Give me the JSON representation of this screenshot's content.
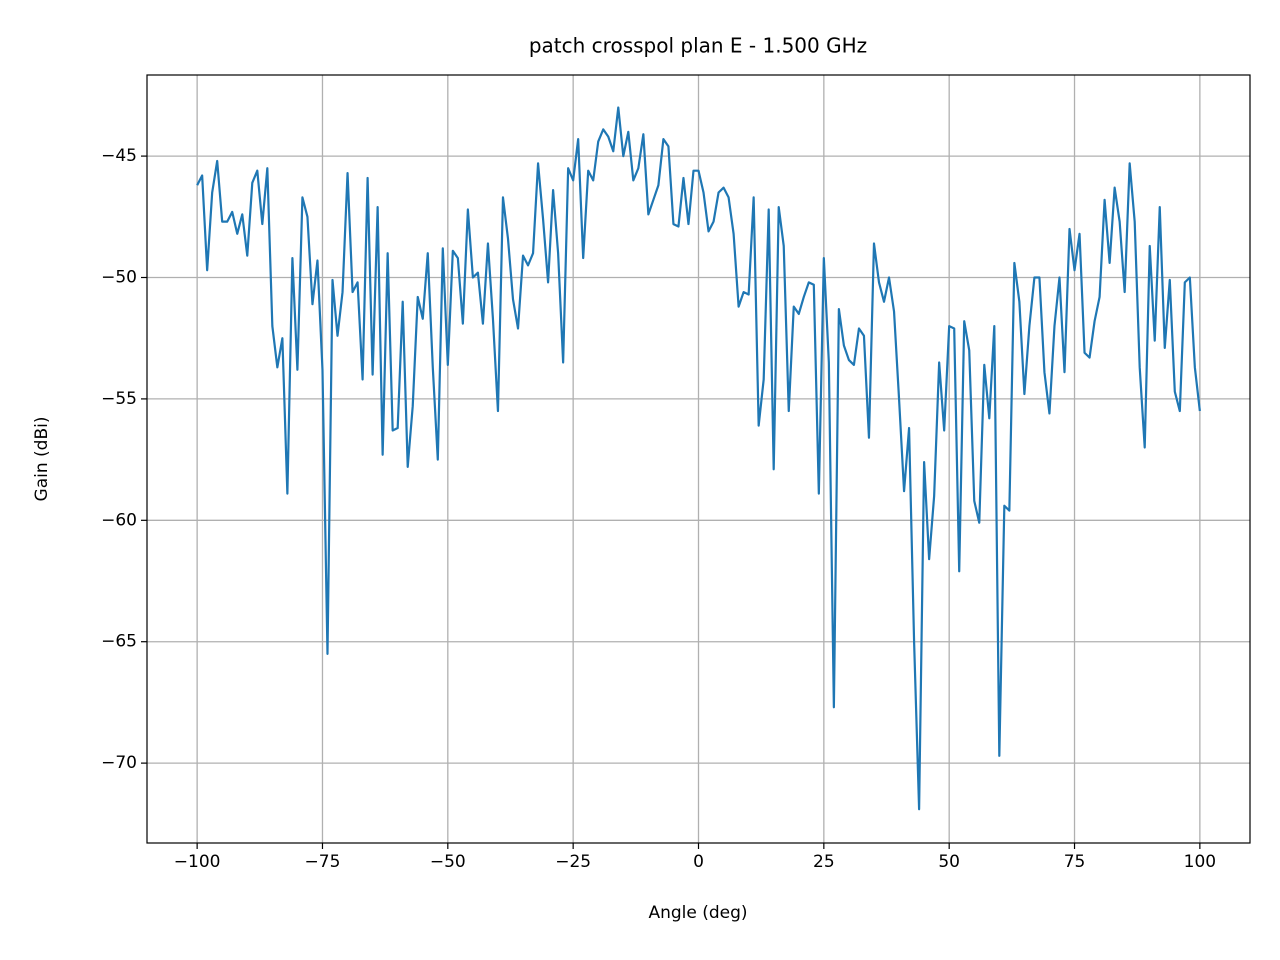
{
  "chart_data": {
    "type": "line",
    "title": "patch crosspol plan E - 1.500 GHz",
    "xlabel": "Angle (deg)",
    "ylabel": "Gain (dBi)",
    "xlim": [
      -110,
      110
    ],
    "ylim": [
      -73.29,
      -41.66
    ],
    "xticks": [
      {
        "value": -100,
        "label": "−100"
      },
      {
        "value": -75,
        "label": "−75"
      },
      {
        "value": -50,
        "label": "−50"
      },
      {
        "value": -25,
        "label": "−25"
      },
      0,
      25,
      50,
      75,
      100
    ],
    "yticks": [
      {
        "value": -70,
        "label": "−70"
      },
      {
        "value": -65,
        "label": "−65"
      },
      {
        "value": -60,
        "label": "−60"
      },
      {
        "value": -55,
        "label": "−55"
      },
      {
        "value": -50,
        "label": "−50"
      },
      {
        "value": -45,
        "label": "−45"
      }
    ],
    "grid": true,
    "x": [
      -100,
      -99,
      -98,
      -97,
      -96,
      -95,
      -94,
      -93,
      -92,
      -91,
      -90,
      -89,
      -88,
      -87,
      -86,
      -85,
      -84,
      -83,
      -82,
      -81,
      -80,
      -79,
      -78,
      -77,
      -76,
      -75,
      -74,
      -73,
      -72,
      -71,
      -70,
      -69,
      -68,
      -67,
      -66,
      -65,
      -64,
      -63,
      -62,
      -61,
      -60,
      -59,
      -58,
      -57,
      -56,
      -55,
      -54,
      -53,
      -52,
      -51,
      -50,
      -49,
      -48,
      -47,
      -46,
      -45,
      -44,
      -43,
      -42,
      -41,
      -40,
      -39,
      -38,
      -37,
      -36,
      -35,
      -34,
      -33,
      -32,
      -31,
      -30,
      -29,
      -28,
      -27,
      -26,
      -25,
      -24,
      -23,
      -22,
      -21,
      -20,
      -19,
      -18,
      -17,
      -16,
      -15,
      -14,
      -13,
      -12,
      -11,
      -10,
      -9,
      -8,
      -7,
      -6,
      -5,
      -4,
      -3,
      -2,
      -1,
      0,
      1,
      2,
      3,
      4,
      5,
      6,
      7,
      8,
      9,
      10,
      11,
      12,
      13,
      14,
      15,
      16,
      17,
      18,
      19,
      20,
      21,
      22,
      23,
      24,
      25,
      26,
      27,
      28,
      29,
      30,
      31,
      32,
      33,
      34,
      35,
      36,
      37,
      38,
      39,
      40,
      41,
      42,
      43,
      44,
      45,
      46,
      47,
      48,
      49,
      50,
      51,
      52,
      53,
      54,
      55,
      56,
      57,
      58,
      59,
      60,
      61,
      62,
      63,
      64,
      65,
      66,
      67,
      68,
      69,
      70,
      71,
      72,
      73,
      74,
      75,
      76,
      77,
      78,
      79,
      80,
      81,
      82,
      83,
      84,
      85,
      86,
      87,
      88,
      89,
      90,
      91,
      92,
      93,
      94,
      95,
      96,
      97,
      98,
      99,
      100
    ],
    "series": [
      {
        "name": "crosspol",
        "color": "#1f77b4",
        "values": [
          -46.2,
          -45.8,
          -49.7,
          -46.5,
          -45.2,
          -47.7,
          -47.7,
          -47.3,
          -48.2,
          -47.4,
          -49.1,
          -46.1,
          -45.6,
          -47.8,
          -45.5,
          -52.0,
          -53.7,
          -52.5,
          -58.9,
          -49.2,
          -53.8,
          -46.7,
          -47.5,
          -51.1,
          -49.3,
          -53.8,
          -65.5,
          -50.1,
          -52.4,
          -50.6,
          -45.7,
          -50.6,
          -50.2,
          -54.2,
          -45.9,
          -54.0,
          -47.1,
          -57.3,
          -49.0,
          -56.3,
          -56.2,
          -51.0,
          -57.8,
          -55.3,
          -50.8,
          -51.7,
          -49.0,
          -53.7,
          -57.5,
          -48.8,
          -53.6,
          -48.9,
          -49.2,
          -51.9,
          -47.2,
          -50.0,
          -49.8,
          -51.9,
          -48.6,
          -51.7,
          -55.5,
          -46.7,
          -48.4,
          -50.9,
          -52.1,
          -49.1,
          -49.5,
          -49.0,
          -45.3,
          -47.6,
          -50.2,
          -46.4,
          -49.0,
          -53.5,
          -45.5,
          -46.0,
          -44.3,
          -49.2,
          -45.6,
          -46.0,
          -44.4,
          -43.9,
          -44.2,
          -44.8,
          -43.0,
          -45.0,
          -44.0,
          -46.0,
          -45.5,
          -44.1,
          -47.4,
          -46.8,
          -46.2,
          -44.3,
          -44.6,
          -47.8,
          -47.9,
          -45.9,
          -47.8,
          -45.6,
          -45.6,
          -46.5,
          -48.1,
          -47.7,
          -46.5,
          -46.3,
          -46.7,
          -48.2,
          -51.2,
          -50.6,
          -50.7,
          -46.7,
          -56.1,
          -54.2,
          -47.2,
          -57.9,
          -47.1,
          -48.7,
          -55.5,
          -51.2,
          -51.5,
          -50.8,
          -50.2,
          -50.3,
          -58.9,
          -49.2,
          -53.5,
          -67.7,
          -51.3,
          -52.8,
          -53.4,
          -53.6,
          -52.1,
          -52.4,
          -56.6,
          -48.6,
          -50.2,
          -51.0,
          -50.0,
          -51.4,
          -55.0,
          -58.8,
          -56.2,
          -65.0,
          -71.9,
          -57.6,
          -61.6,
          -59.0,
          -53.5,
          -56.3,
          -52.0,
          -52.1,
          -62.1,
          -51.8,
          -53.0,
          -59.2,
          -60.1,
          -53.6,
          -55.8,
          -52.0,
          -69.7,
          -59.4,
          -59.6,
          -49.4,
          -51.0,
          -54.8,
          -52.0,
          -50.0,
          -50.0,
          -53.9,
          -55.6,
          -52.0,
          -50.0,
          -53.9,
          -48.0,
          -49.7,
          -48.2,
          -53.1,
          -53.3,
          -51.8,
          -50.8,
          -46.8,
          -49.4,
          -46.3,
          -47.7,
          -50.6,
          -45.3,
          -47.7,
          -53.7,
          -57.0,
          -48.7,
          -52.6,
          -47.1,
          -52.9,
          -50.1,
          -54.7,
          -55.5,
          -50.2,
          -50.0,
          -53.7,
          -55.5
        ]
      }
    ]
  }
}
